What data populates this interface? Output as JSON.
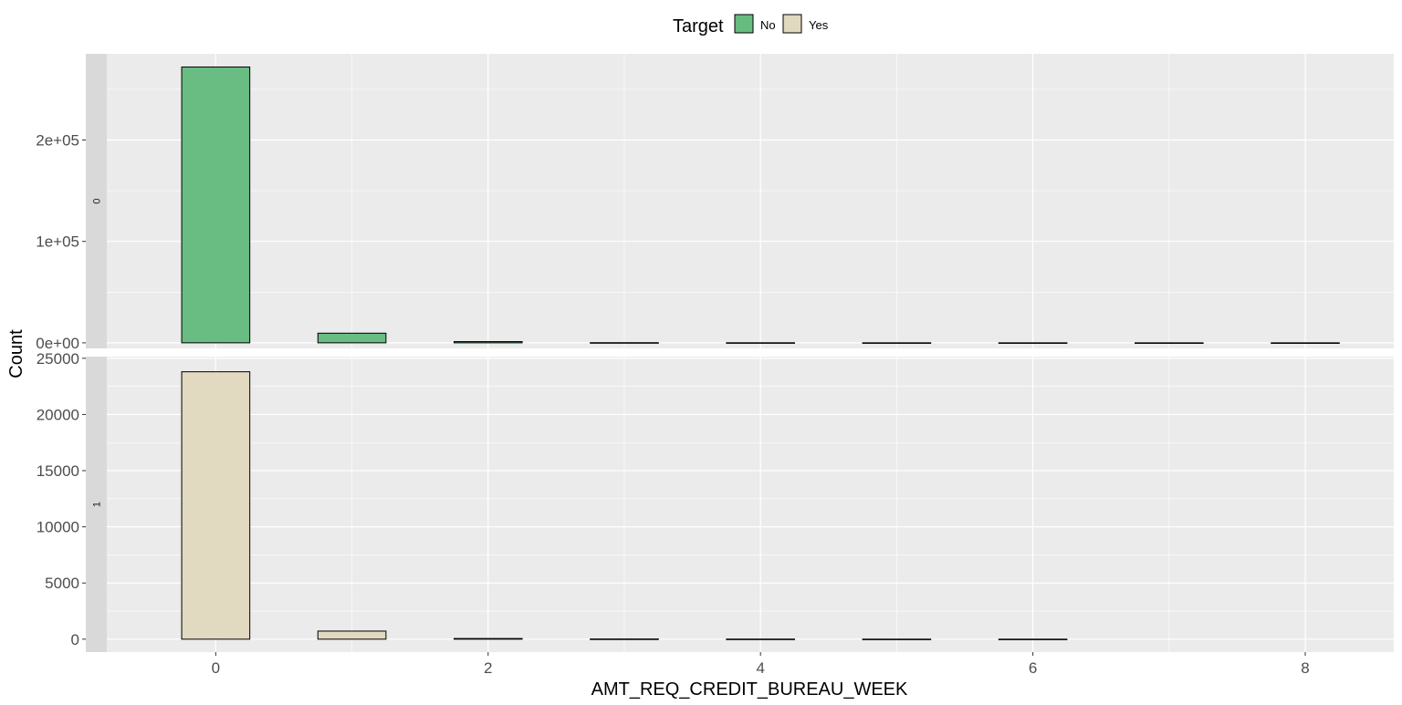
{
  "chart_data": {
    "type": "bar",
    "xlabel": "AMT_REQ_CREDIT_BUREAU_WEEK",
    "ylabel": "Count",
    "legend": {
      "title": "Target",
      "placement": "top",
      "entries": [
        {
          "label": "No",
          "color": "#66bb7f"
        },
        {
          "label": "Yes",
          "color": "#e0d8bf"
        }
      ]
    },
    "x_ticks": [
      "0",
      "2",
      "4",
      "6",
      "8"
    ],
    "xlim": [
      -0.8,
      8.65
    ],
    "grid": true,
    "facets": [
      {
        "strip_label": "0",
        "series_name": "No",
        "color": "#66bb7f",
        "ylim": [
          -5500,
          285000
        ],
        "y_ticks": [
          {
            "value": 0,
            "label": "0e+00"
          },
          {
            "value": 100000,
            "label": "1e+05"
          },
          {
            "value": 200000,
            "label": "2e+05"
          }
        ],
        "x": [
          0,
          1,
          2,
          3,
          4,
          5,
          6,
          7,
          8
        ],
        "values": [
          272000,
          9500,
          1200,
          150,
          80,
          40,
          25,
          15,
          10
        ]
      },
      {
        "strip_label": "1",
        "series_name": "Yes",
        "color": "#e0d8bf",
        "ylim": [
          -1150,
          25150
        ],
        "y_ticks": [
          {
            "value": 0,
            "label": "0"
          },
          {
            "value": 5000,
            "label": "5000"
          },
          {
            "value": 10000,
            "label": "10000"
          },
          {
            "value": 15000,
            "label": "15000"
          },
          {
            "value": 20000,
            "label": "20000"
          },
          {
            "value": 25000,
            "label": "25000"
          }
        ],
        "x": [
          0,
          1,
          2,
          3,
          4,
          5,
          6
        ],
        "values": [
          23800,
          720,
          60,
          20,
          10,
          5,
          3
        ]
      }
    ]
  }
}
